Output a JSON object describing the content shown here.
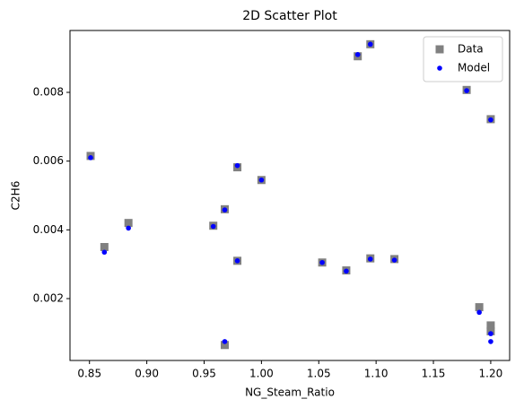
{
  "chart_data": {
    "type": "scatter",
    "title": "2D Scatter Plot",
    "x_label": "NG_Steam_Ratio",
    "y_label": "C2H6",
    "xlim": [
      0.833,
      1.2165
    ],
    "ylim": [
      0.0002,
      0.0098
    ],
    "xticks": [
      0.85,
      {
        "value": 0.9,
        "label": "0.90"
      },
      0.95,
      {
        "value": 1.0,
        "label": "1.00"
      },
      1.05,
      {
        "value": 1.1,
        "label": "1.10"
      },
      1.15,
      {
        "value": 1.2,
        "label": "1.20"
      }
    ],
    "yticks": [
      0.002,
      0.004,
      0.006,
      0.008
    ],
    "legend": "upper right",
    "series": [
      {
        "name": "Data",
        "color": "#808080",
        "marker": "square",
        "x": [
          0.851,
          0.863,
          0.884,
          0.958,
          0.968,
          0.968,
          0.979,
          0.979,
          1.0,
          1.053,
          1.074,
          1.084,
          1.095,
          1.095,
          1.116,
          1.179,
          1.2,
          1.19,
          1.2,
          1.2
        ],
        "values": [
          0.00615,
          0.0035,
          0.0042,
          0.00412,
          0.0046,
          0.00065,
          0.00582,
          0.0031,
          0.00545,
          0.00305,
          0.00282,
          0.00905,
          0.0094,
          0.00317,
          0.00315,
          0.00807,
          0.00722,
          0.00175,
          0.00122,
          0.00105
        ]
      },
      {
        "name": "Model",
        "color": "#0000ff",
        "marker": "circle",
        "x": [
          0.851,
          0.863,
          0.884,
          0.958,
          0.968,
          0.968,
          0.979,
          0.979,
          1.0,
          1.053,
          1.074,
          1.084,
          1.095,
          1.095,
          1.116,
          1.179,
          1.2,
          1.19,
          1.2,
          1.2
        ],
        "values": [
          0.0061,
          0.00335,
          0.00405,
          0.0041,
          0.00458,
          0.00075,
          0.00587,
          0.0031,
          0.00545,
          0.00305,
          0.0028,
          0.0091,
          0.0094,
          0.00315,
          0.00312,
          0.00805,
          0.0072,
          0.0016,
          0.00098,
          0.00075
        ]
      }
    ]
  }
}
